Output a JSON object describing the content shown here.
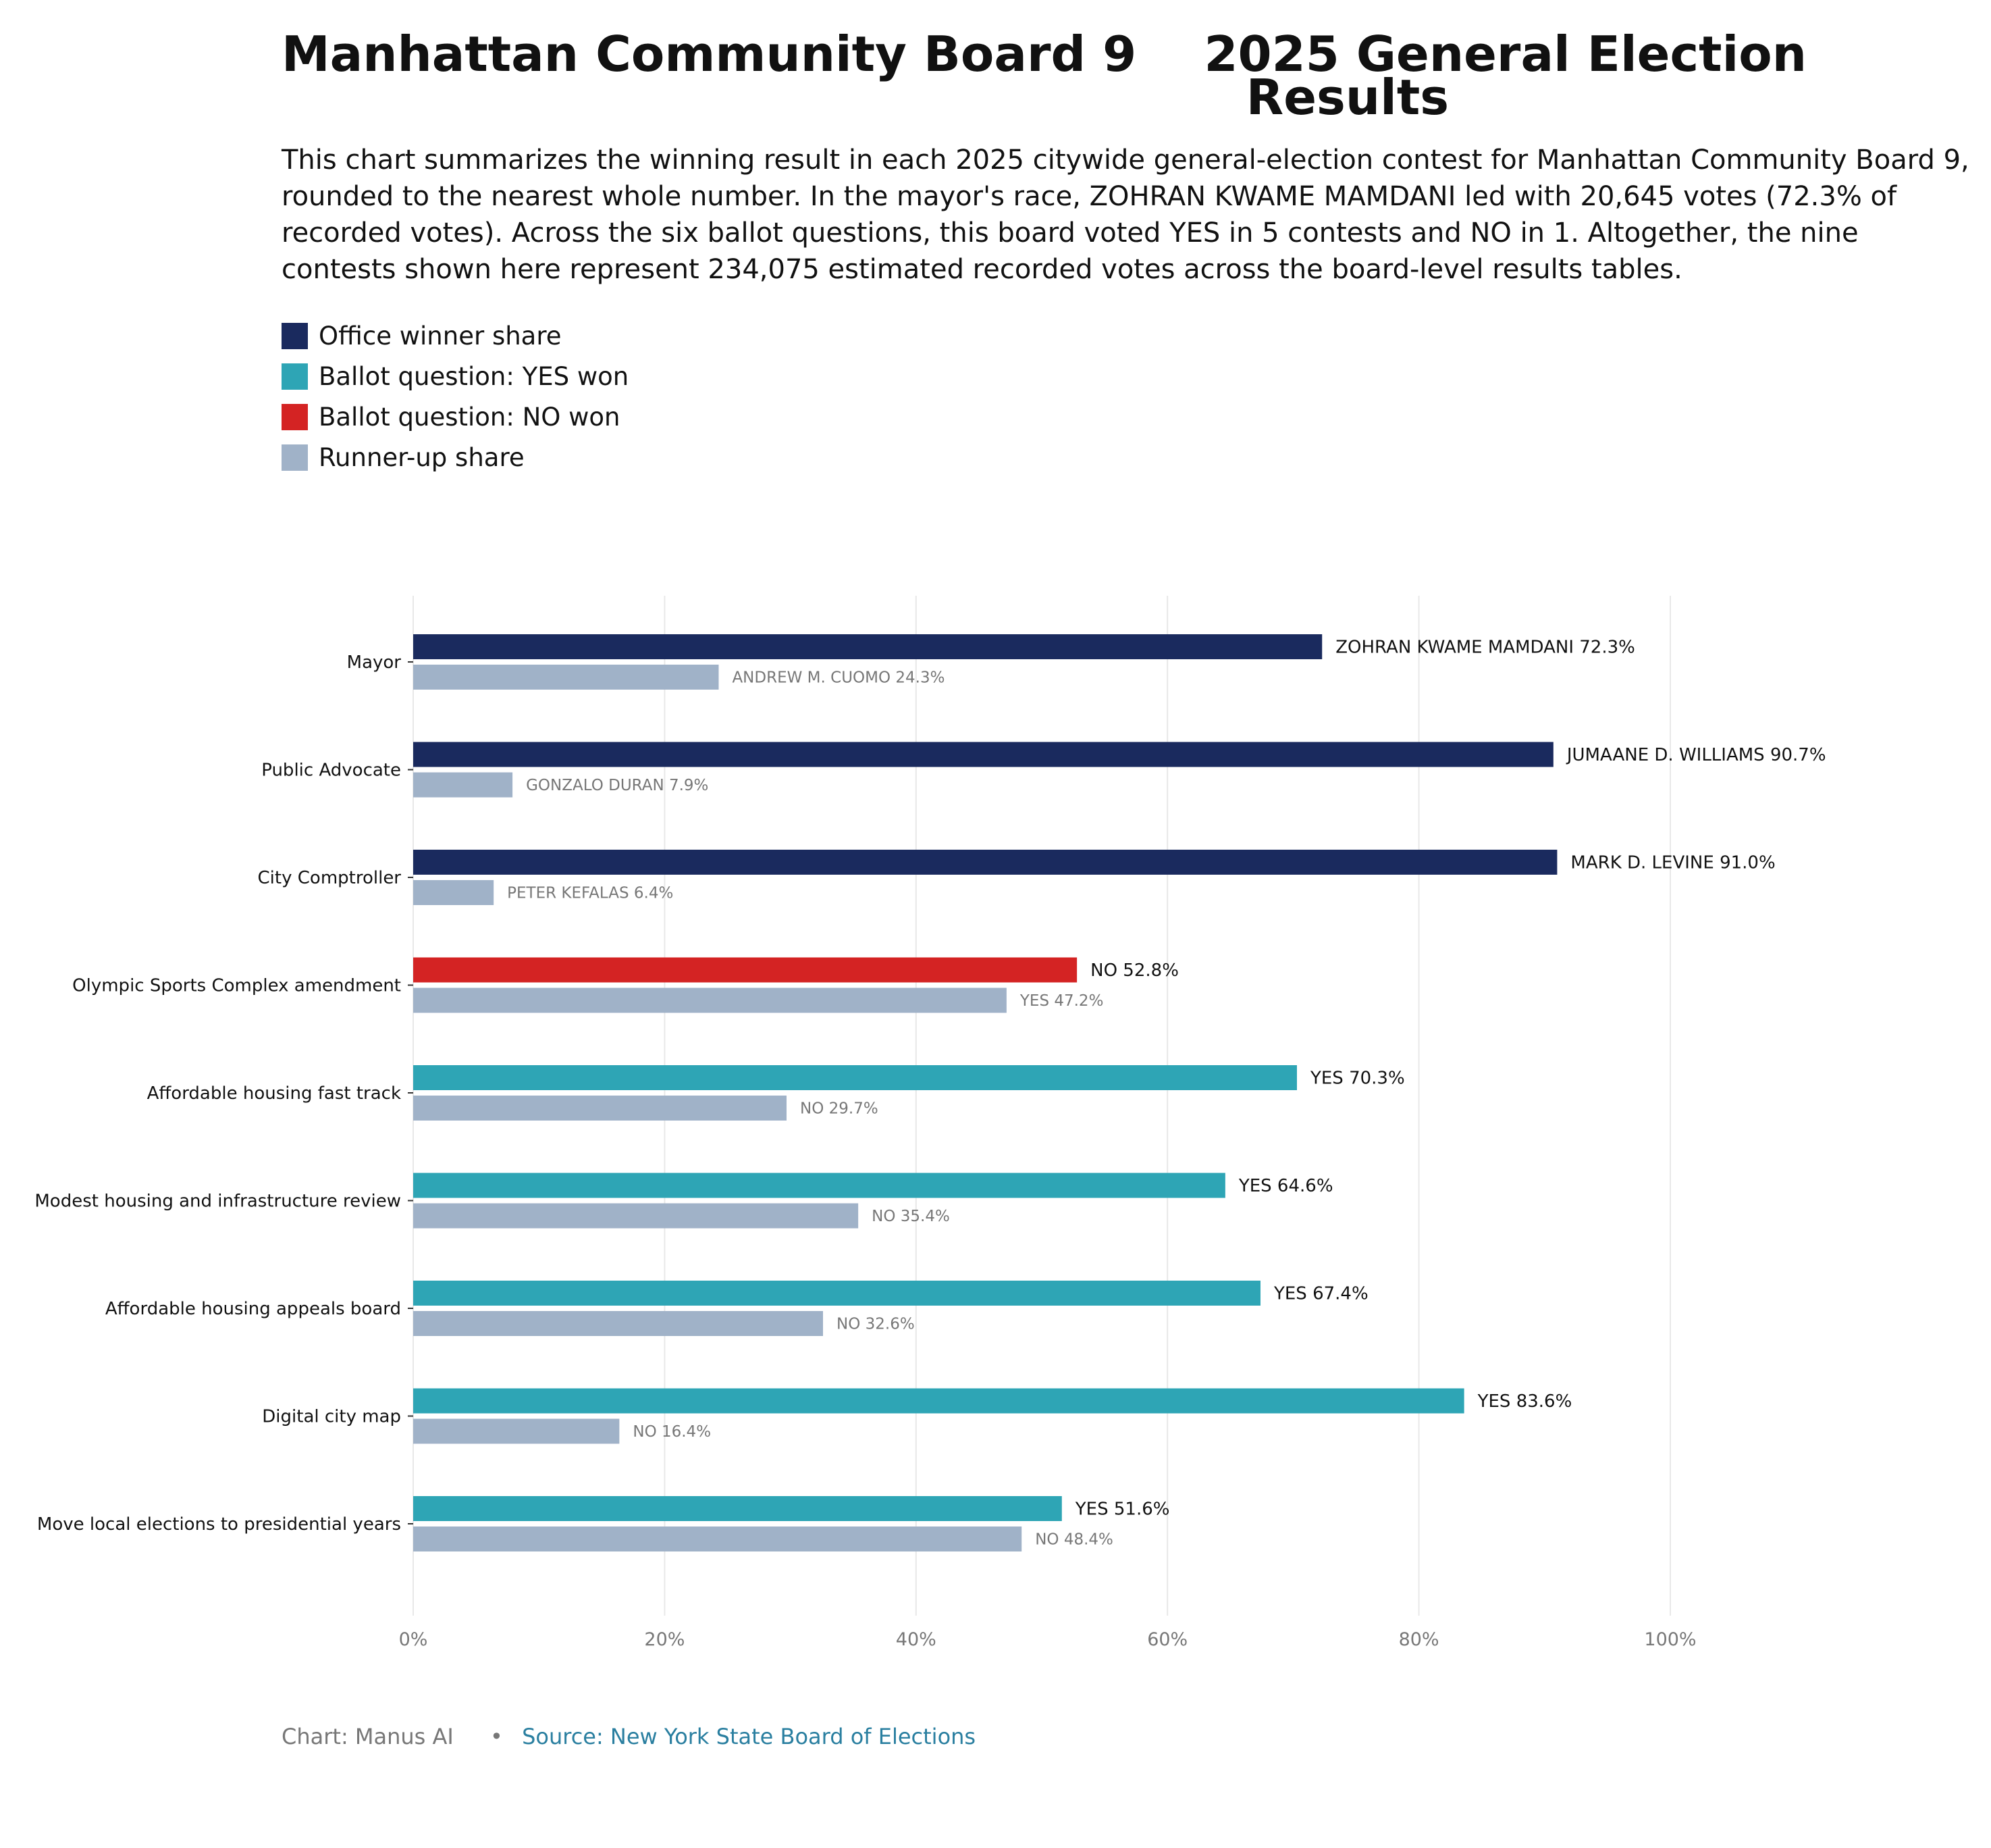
{
  "header": {
    "title": "Manhattan Community Board 9    2025 General Election\n                                                         Results",
    "description": "This chart summarizes the winning result in each 2025 citywide general-election contest for Manhattan Community Board 9, rounded to the nearest whole number. In the mayor's race, ZOHRAN KWAME MAMDANI led with 20,645 votes (72.3% of recorded votes). Across the six ballot questions, this board voted YES in 5 contests and NO in 1. Altogether, the nine contests shown here represent 234,075 estimated recorded votes across the board-level results tables."
  },
  "legend": [
    {
      "label": "Office winner share",
      "color": "#1a2a5e"
    },
    {
      "label": "Ballot question: YES won",
      "color": "#2ea5b5"
    },
    {
      "label": "Ballot question: NO won",
      "color": "#d42323"
    },
    {
      "label": "Runner-up share",
      "color": "#a0b2c8"
    }
  ],
  "chart_data": {
    "type": "bar",
    "orientation": "horizontal",
    "categories": [
      "Mayor",
      "Public Advocate",
      "City Comptroller",
      "Olympic Sports Complex amendment",
      "Affordable housing fast track",
      "Modest housing and infrastructure review",
      "Affordable housing appeals board",
      "Digital city map",
      "Move local elections to presidential years"
    ],
    "winner": {
      "values": [
        72.3,
        90.7,
        91.0,
        52.8,
        70.3,
        64.6,
        67.4,
        83.6,
        51.6
      ],
      "labels": [
        "ZOHRAN KWAME MAMDANI 72.3%",
        "JUMAANE D. WILLIAMS 90.7%",
        "MARK D. LEVINE 91.0%",
        "NO 52.8%",
        "YES 70.3%",
        "YES 64.6%",
        "YES 67.4%",
        "YES 83.6%",
        "YES 51.6%"
      ],
      "kinds": [
        "office",
        "office",
        "office",
        "no",
        "yes",
        "yes",
        "yes",
        "yes",
        "yes"
      ]
    },
    "runner_up": {
      "values": [
        24.3,
        7.9,
        6.4,
        47.2,
        29.7,
        35.4,
        32.6,
        16.4,
        48.4
      ],
      "labels": [
        "ANDREW M. CUOMO 24.3%",
        "GONZALO DURAN 7.9%",
        "PETER KEFALAS 6.4%",
        "YES 47.2%",
        "NO 29.7%",
        "NO 35.4%",
        "NO 32.6%",
        "NO 16.4%",
        "NO 48.4%"
      ]
    },
    "colors": {
      "office": "#1a2a5e",
      "yes": "#2ea5b5",
      "no": "#d42323",
      "runner_up": "#a0b2c8"
    },
    "xlim": [
      0,
      100
    ],
    "xticks": [
      0,
      20,
      40,
      60,
      80,
      100
    ],
    "xtick_labels": [
      "0%",
      "20%",
      "40%",
      "60%",
      "80%",
      "100%"
    ],
    "grid": true
  },
  "footer": {
    "credit": "Chart: Manus AI",
    "bullet": "•",
    "source": "Source: New York State Board of Elections"
  }
}
